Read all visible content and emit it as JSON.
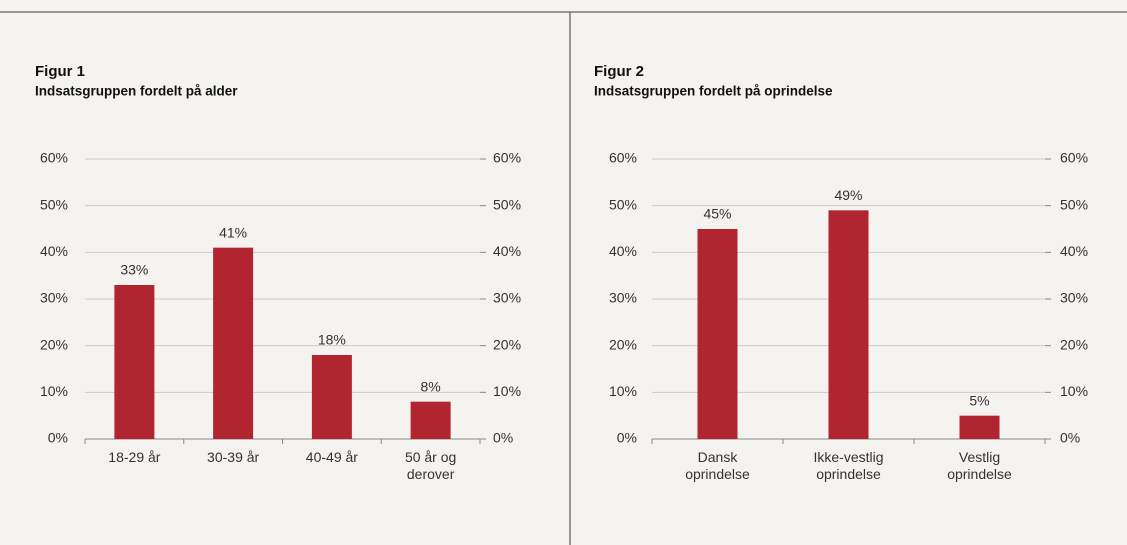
{
  "chart_data": [
    {
      "type": "bar",
      "figure": "Figur 1",
      "title": "Indsatsgruppen fordelt på alder",
      "categories": [
        "18-29 år",
        "30-39 år",
        "40-49 år",
        "50 år og derover"
      ],
      "values": [
        33,
        41,
        18,
        8
      ],
      "value_labels": [
        "33%",
        "41%",
        "18%",
        "8%"
      ],
      "color": "#b0252f",
      "ylim": [
        0,
        60
      ],
      "yticks": [
        {
          "value": 0,
          "label": "0%"
        },
        {
          "value": 10,
          "label": "10%"
        },
        {
          "value": 20,
          "label": "20%"
        },
        {
          "value": 30,
          "label": "30%"
        },
        {
          "value": 40,
          "label": "40%"
        },
        {
          "value": 50,
          "label": "50%"
        },
        {
          "value": 60,
          "label": "60%"
        }
      ],
      "y2lim": [
        0,
        60
      ],
      "y2ticks": [
        {
          "value": 0,
          "label": "0%"
        },
        {
          "value": 10,
          "label": "10%"
        },
        {
          "value": 20,
          "label": "20%"
        },
        {
          "value": 30,
          "label": "30%"
        },
        {
          "value": 40,
          "label": "40%"
        },
        {
          "value": 50,
          "label": "50%"
        },
        {
          "value": 60,
          "label": "60%"
        }
      ],
      "grid": true
    },
    {
      "type": "bar",
      "figure": "Figur 2",
      "title": "Indsatsgruppen fordelt på oprindelse",
      "categories": [
        "Dansk oprindelse",
        "Ikke-vestlig oprindelse",
        "Vestlig oprindelse"
      ],
      "values": [
        45,
        49,
        5
      ],
      "value_labels": [
        "45%",
        "49%",
        "5%"
      ],
      "color": "#b0252f",
      "ylim": [
        0,
        60
      ],
      "yticks": [
        {
          "value": 0,
          "label": "0%"
        },
        {
          "value": 10,
          "label": "10%"
        },
        {
          "value": 20,
          "label": "20%"
        },
        {
          "value": 30,
          "label": "30%"
        },
        {
          "value": 40,
          "label": "40%"
        },
        {
          "value": 50,
          "label": "50%"
        },
        {
          "value": 60,
          "label": "60%"
        }
      ],
      "y2lim": [
        0,
        60
      ],
      "y2ticks": [
        {
          "value": 0,
          "label": "0%"
        },
        {
          "value": 10,
          "label": "10%"
        },
        {
          "value": 20,
          "label": "20%"
        },
        {
          "value": 30,
          "label": "30%"
        },
        {
          "value": 40,
          "label": "40%"
        },
        {
          "value": 50,
          "label": "50%"
        },
        {
          "value": 60,
          "label": "60%"
        }
      ],
      "grid": true
    }
  ]
}
